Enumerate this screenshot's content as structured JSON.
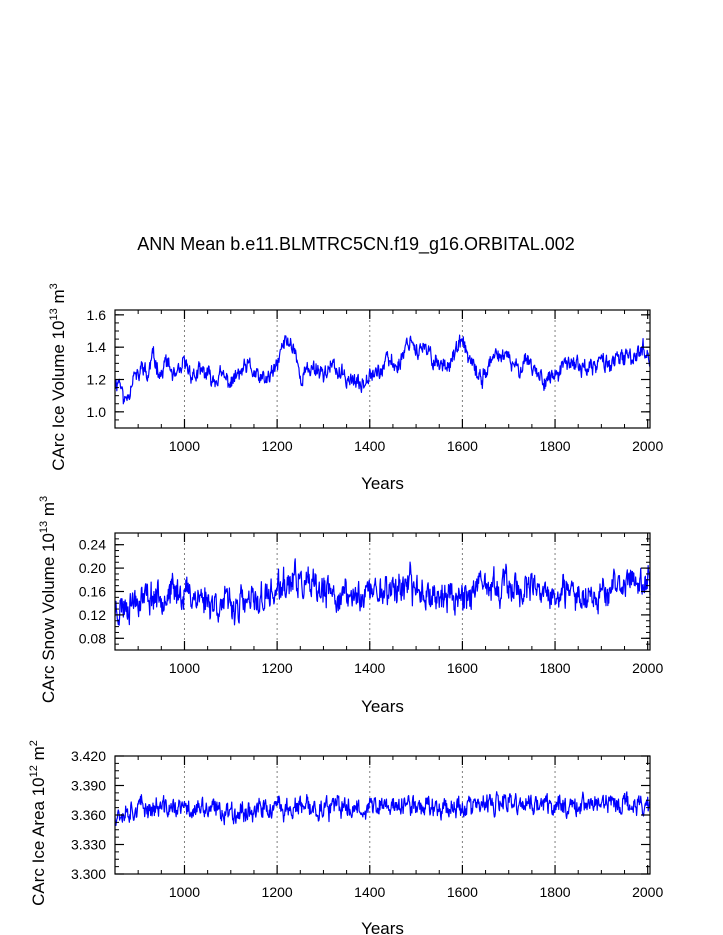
{
  "title": "ANN Mean b.e11.BLMTRC5CN.f19_g16.ORBITAL.002",
  "colors": {
    "line": "#0000ff",
    "axis": "#000000",
    "grid": "#7f7f7f"
  },
  "chart_data": [
    {
      "type": "line",
      "ylabel": "CArc Ice Volume 10^13 m^3",
      "ylabel_main": "CArc Ice Volume 10",
      "ylabel_exp1": "13",
      "ylabel_mid": " m",
      "ylabel_exp2": "3",
      "xlabel": "Years",
      "xlim": [
        850,
        2005
      ],
      "ylim": [
        0.9,
        1.63
      ],
      "xticks": [
        1000,
        1200,
        1400,
        1600,
        1800,
        2000
      ],
      "xtick_labels": [
        "1000",
        "1200",
        "1400",
        "1600",
        "1800",
        "2000"
      ],
      "yticks": [
        1.0,
        1.2,
        1.4,
        1.6
      ],
      "ytick_labels": [
        "1.0",
        "1.2",
        "1.4",
        "1.6"
      ],
      "grid_x": [
        1000,
        1200,
        1400,
        1600,
        1800
      ],
      "series": [
        {
          "name": "ice volume",
          "anchors_x": [
            850,
            860,
            870,
            880,
            890,
            900,
            910,
            920,
            930,
            940,
            950,
            960,
            970,
            980,
            990,
            1000,
            1020,
            1040,
            1060,
            1080,
            1100,
            1120,
            1140,
            1160,
            1180,
            1200,
            1210,
            1220,
            1230,
            1240,
            1250,
            1260,
            1280,
            1300,
            1320,
            1340,
            1360,
            1380,
            1400,
            1420,
            1440,
            1460,
            1480,
            1490,
            1500,
            1520,
            1540,
            1560,
            1580,
            1600,
            1620,
            1640,
            1660,
            1680,
            1700,
            1720,
            1740,
            1760,
            1780,
            1800,
            1820,
            1840,
            1860,
            1880,
            1900,
            1920,
            1940,
            1960,
            1980,
            1990,
            2000,
            2005
          ],
          "anchors_y": [
            1.18,
            1.2,
            1.06,
            1.12,
            1.24,
            1.2,
            1.3,
            1.2,
            1.34,
            1.3,
            1.22,
            1.32,
            1.26,
            1.2,
            1.24,
            1.3,
            1.22,
            1.25,
            1.2,
            1.22,
            1.18,
            1.24,
            1.28,
            1.2,
            1.2,
            1.28,
            1.4,
            1.44,
            1.42,
            1.38,
            1.2,
            1.24,
            1.28,
            1.24,
            1.28,
            1.22,
            1.2,
            1.16,
            1.26,
            1.24,
            1.32,
            1.28,
            1.42,
            1.46,
            1.38,
            1.38,
            1.32,
            1.28,
            1.34,
            1.44,
            1.28,
            1.2,
            1.3,
            1.36,
            1.32,
            1.26,
            1.34,
            1.24,
            1.2,
            1.22,
            1.28,
            1.3,
            1.28,
            1.26,
            1.32,
            1.3,
            1.32,
            1.34,
            1.36,
            1.4,
            1.36,
            1.3
          ],
          "noise": 0.055,
          "seed": 11,
          "clip": [
            0.99,
            1.6
          ]
        }
      ]
    },
    {
      "type": "line",
      "ylabel": "CArc Snow Volume 10^13 m^3",
      "ylabel_main": "CArc Snow Volume 10",
      "ylabel_exp1": "13",
      "ylabel_mid": " m",
      "ylabel_exp2": "3",
      "xlabel": "Years",
      "xlim": [
        850,
        2005
      ],
      "ylim": [
        0.06,
        0.26
      ],
      "xticks": [
        1000,
        1200,
        1400,
        1600,
        1800,
        2000
      ],
      "xtick_labels": [
        "1000",
        "1200",
        "1400",
        "1600",
        "1800",
        "2000"
      ],
      "yticks": [
        0.08,
        0.12,
        0.16,
        0.2,
        0.24
      ],
      "ytick_labels": [
        "0.08",
        "0.12",
        "0.16",
        "0.20",
        "0.24"
      ],
      "grid_x": [
        1000,
        1200,
        1400,
        1600,
        1800
      ],
      "series": [
        {
          "name": "snow volume",
          "anchors_x": [
            850,
            900,
            950,
            1000,
            1050,
            1100,
            1150,
            1200,
            1240,
            1280,
            1320,
            1360,
            1400,
            1440,
            1480,
            1520,
            1560,
            1600,
            1650,
            1700,
            1750,
            1800,
            1850,
            1900,
            1950,
            1980,
            2005
          ],
          "anchors_y": [
            0.13,
            0.15,
            0.155,
            0.16,
            0.145,
            0.135,
            0.14,
            0.16,
            0.18,
            0.16,
            0.155,
            0.15,
            0.16,
            0.165,
            0.17,
            0.16,
            0.15,
            0.155,
            0.165,
            0.17,
            0.16,
            0.15,
            0.155,
            0.16,
            0.17,
            0.185,
            0.17
          ],
          "noise": 0.028,
          "seed": 23,
          "clip": [
            0.078,
            0.256
          ]
        }
      ]
    },
    {
      "type": "line",
      "ylabel": "CArc Ice Area 10^12 m^2",
      "ylabel_main": "CArc Ice Area 10",
      "ylabel_exp1": "12",
      "ylabel_mid": " m",
      "ylabel_exp2": "2",
      "xlabel": "Years",
      "xlim": [
        850,
        2005
      ],
      "ylim": [
        3.3,
        3.42
      ],
      "xticks": [
        1000,
        1200,
        1400,
        1600,
        1800,
        2000
      ],
      "xtick_labels": [
        "1000",
        "1200",
        "1400",
        "1600",
        "1800",
        "2000"
      ],
      "yticks": [
        3.3,
        3.33,
        3.36,
        3.39,
        3.42
      ],
      "ytick_labels": [
        "3.300",
        "3.330",
        "3.360",
        "3.390",
        "3.420"
      ],
      "grid_x": [
        1000,
        1200,
        1400,
        1600,
        1800
      ],
      "series": [
        {
          "name": "ice area",
          "anchors_x": [
            850,
            900,
            1000,
            1100,
            1200,
            1300,
            1400,
            1500,
            1600,
            1700,
            1800,
            1900,
            2005
          ],
          "anchors_y": [
            3.362,
            3.368,
            3.366,
            3.364,
            3.366,
            3.367,
            3.368,
            3.37,
            3.368,
            3.371,
            3.37,
            3.372,
            3.37
          ],
          "noise": 0.011,
          "seed": 37,
          "clip": [
            3.305,
            3.405
          ]
        }
      ]
    }
  ]
}
